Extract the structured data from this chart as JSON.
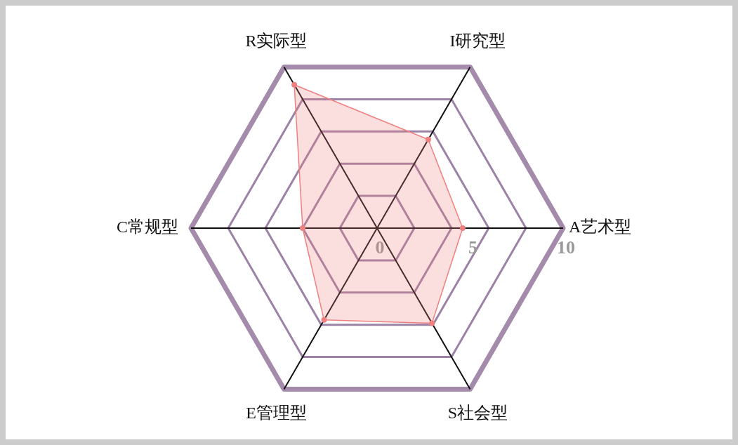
{
  "chart_data": {
    "type": "radar",
    "categories": [
      "I研究型",
      "A艺术型",
      "S社会型",
      "E管理型",
      "C常规型",
      "R实际型"
    ],
    "series": [
      {
        "color": "#f08080",
        "values": [
          5.5,
          4.6,
          5.9,
          5.7,
          4.0,
          8.9
        ]
      }
    ],
    "ylim": [
      0,
      10
    ],
    "yticks": [
      0,
      5,
      10
    ],
    "grid": true,
    "marker": "circle"
  }
}
